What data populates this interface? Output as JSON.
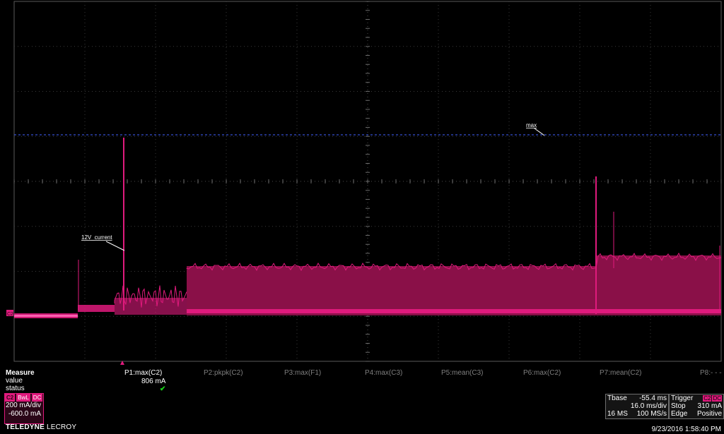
{
  "measure": {
    "labels": [
      "Measure",
      "value",
      "status"
    ],
    "params": [
      {
        "label": "P1:max(C2)",
        "value": "806 mA",
        "status": "✔",
        "active": true
      },
      {
        "label": "P2:pkpk(C2)",
        "value": "",
        "status": "",
        "active": false
      },
      {
        "label": "P3:max(F1)",
        "value": "",
        "status": "",
        "active": false
      },
      {
        "label": "P4:max(C3)",
        "value": "",
        "status": "",
        "active": false
      },
      {
        "label": "P5:mean(C3)",
        "value": "",
        "status": "",
        "active": false
      },
      {
        "label": "P6:max(C2)",
        "value": "",
        "status": "",
        "active": false
      },
      {
        "label": "P7:mean(C2)",
        "value": "",
        "status": "",
        "active": false
      },
      {
        "label": "P8:- - -",
        "value": "",
        "status": "",
        "active": false
      }
    ]
  },
  "channel": {
    "name": "C2",
    "bwl": "BwL",
    "coupling": "DC",
    "vdiv": "200 mA/div",
    "offset": "-600.0 mA",
    "color": "#e01a7d"
  },
  "branding": {
    "brand": "TELEDYNE",
    "brand2": "LECROY"
  },
  "timebase": {
    "label": "Tbase",
    "delay": "-55.4 ms",
    "tdiv": "16.0 ms/div",
    "samples": "16 MS",
    "rate": "100 MS/s"
  },
  "trigger": {
    "label": "Trigger",
    "source": "C2",
    "coupling": "DC",
    "mode": "Stop",
    "level": "310 mA",
    "type": "Edge",
    "slope": "Positive"
  },
  "annotations": {
    "trace_label": "12V_current",
    "max_label": "max",
    "ground_marker": "C2"
  },
  "datetime": "9/23/2016 1:58:40 PM"
}
